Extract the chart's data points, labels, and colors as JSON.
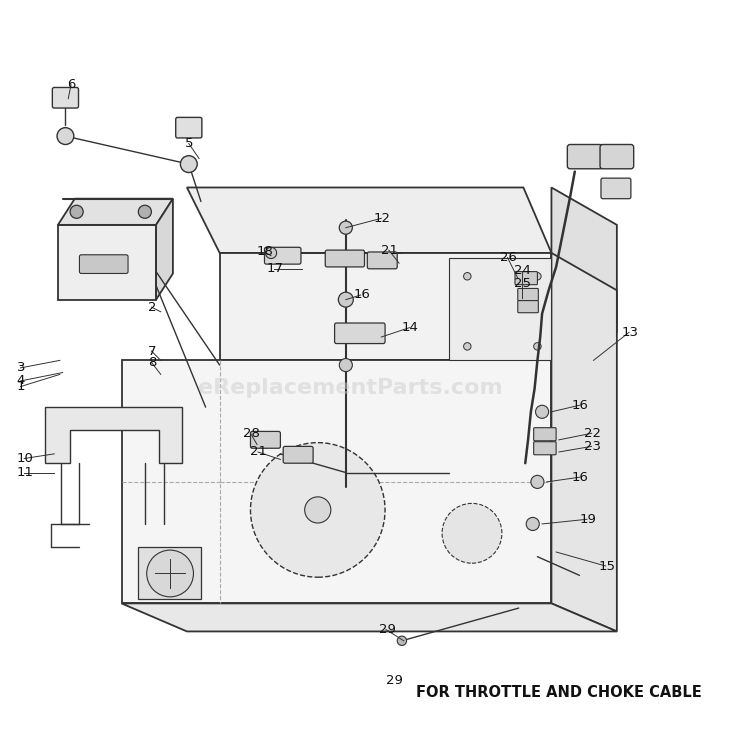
{
  "background_color": "#ffffff",
  "watermark_text": "eReplacementParts.com",
  "watermark_color": "#cccccc",
  "watermark_fontsize": 16,
  "footer_text": "FOR THROTTLE AND CHOKE CABLE",
  "line_color": "#333333",
  "dashed_line_color": "#aaaaaa"
}
